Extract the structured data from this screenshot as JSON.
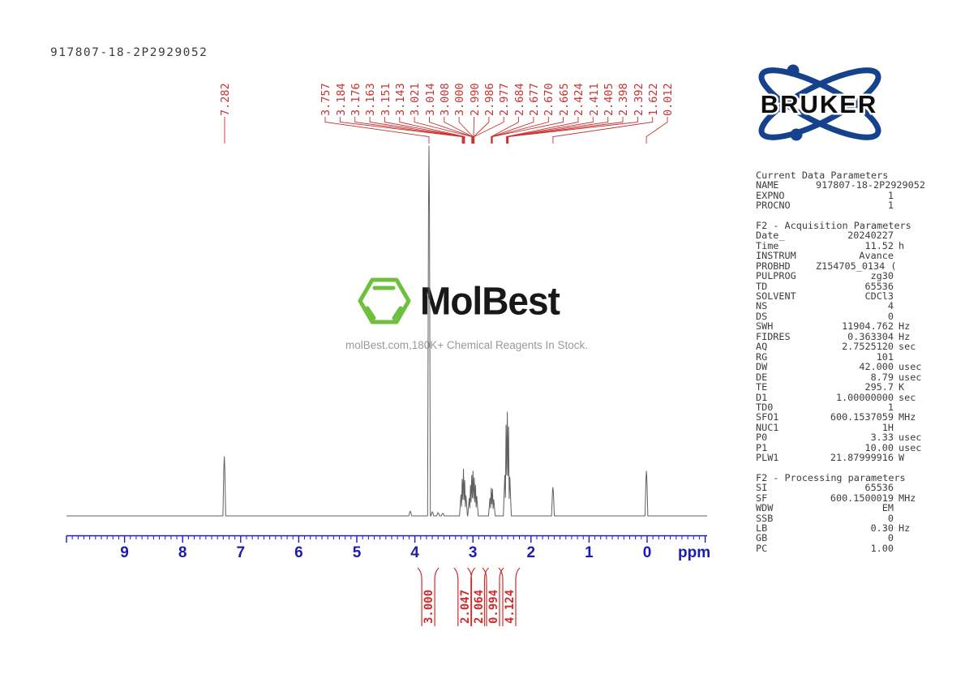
{
  "sample_id": "917807-18-2P2929052",
  "bruker": {
    "label": "BRUKER"
  },
  "watermark": {
    "name": "MolBest",
    "tagline": "molBest.com,180K+ Chemical Reagents In Stock.",
    "hex_icon": "benzene-hexagon-icon"
  },
  "colors": {
    "peak_label_red": "#c83232",
    "integral_red": "#cf2b2b",
    "axis_blue": "#1c1cb2",
    "spectrum_gray": "#5f5f5f",
    "bruker_blue": "#16418c",
    "molbest_green": "#6fbf3e"
  },
  "peak_labels": [
    "7.282",
    "3.757",
    "3.184",
    "3.176",
    "3.163",
    "3.151",
    "3.143",
    "3.021",
    "3.014",
    "3.008",
    "3.000",
    "2.990",
    "2.986",
    "2.977",
    "2.684",
    "2.677",
    "2.670",
    "2.665",
    "2.424",
    "2.411",
    "2.405",
    "2.398",
    "2.392",
    "1.622",
    "0.012"
  ],
  "integrals": [
    {
      "value": "3.000",
      "ppm": 3.77
    },
    {
      "value": "2.047",
      "ppm": 3.145
    },
    {
      "value": "2.064",
      "ppm": 2.912
    },
    {
      "value": "0.994",
      "ppm": 2.653
    },
    {
      "value": "4.124",
      "ppm": 2.374
    }
  ],
  "axis": {
    "unit_label": "ppm",
    "ticks": [
      9,
      8,
      7,
      6,
      5,
      4,
      3,
      2,
      1,
      0
    ],
    "range": [
      10.0,
      -1.03
    ],
    "minor_step": 0.1
  },
  "chart_data": {
    "type": "line",
    "title": "917807-18-2P2929052",
    "xlabel": "ppm",
    "x_range": [
      10.0,
      -1.03
    ],
    "x_ticks": [
      9,
      8,
      7,
      6,
      5,
      4,
      3,
      2,
      1,
      0
    ],
    "peak_labels_ppm": [
      7.282,
      3.757,
      3.184,
      3.176,
      3.163,
      3.151,
      3.143,
      3.021,
      3.014,
      3.008,
      3.0,
      2.99,
      2.986,
      2.977,
      2.684,
      2.677,
      2.67,
      2.665,
      2.424,
      2.411,
      2.405,
      2.398,
      2.392,
      1.622,
      0.012
    ],
    "integral_regions": [
      {
        "center_ppm": 3.77,
        "integral": 3.0
      },
      {
        "center_ppm": 3.145,
        "integral": 2.047
      },
      {
        "center_ppm": 2.912,
        "integral": 2.064
      },
      {
        "center_ppm": 2.653,
        "integral": 0.994
      },
      {
        "center_ppm": 2.374,
        "integral": 4.124
      }
    ],
    "profile": [
      {
        "ppm": 7.282,
        "span_ppm": 0,
        "rel": [
          0.16
        ]
      },
      {
        "ppm": 4.08,
        "span_ppm": 0,
        "rel": [
          0.013
        ]
      },
      {
        "ppm": 3.757,
        "span_ppm": 0,
        "rel": [
          1.0
        ]
      },
      {
        "ppm": 3.7,
        "span_ppm": 0,
        "rel": [
          0.011
        ]
      },
      {
        "ppm": 3.6,
        "span_ppm": 0,
        "rel": [
          0.009
        ]
      },
      {
        "ppm": 3.52,
        "span_ppm": 0,
        "rel": [
          0.007
        ]
      },
      {
        "ppm": 3.163,
        "span_ppm": 0.041,
        "rel": [
          0.057,
          0.099,
          0.127,
          0.096,
          0.055
        ]
      },
      {
        "ppm": 2.999,
        "span_ppm": 0.044,
        "rel": [
          0.048,
          0.083,
          0.11,
          0.121,
          0.103,
          0.083,
          0.053
        ]
      },
      {
        "ppm": 2.674,
        "span_ppm": 0.019,
        "rel": [
          0.048,
          0.075,
          0.072,
          0.044
        ]
      },
      {
        "ppm": 2.408,
        "span_ppm": 0.032,
        "rel": [
          0.11,
          0.246,
          0.281,
          0.241,
          0.105
        ]
      },
      {
        "ppm": 1.622,
        "span_ppm": 0,
        "rel": [
          0.077
        ]
      },
      {
        "ppm": 0.012,
        "span_ppm": 0,
        "rel": [
          0.121
        ]
      }
    ]
  },
  "parameters": {
    "sections": [
      {
        "header": "Current Data Parameters",
        "rows": [
          [
            "NAME",
            "917807-18-2P2929052",
            ""
          ],
          [
            "EXPNO",
            "1",
            ""
          ],
          [
            "PROCNO",
            "1",
            ""
          ]
        ]
      },
      {
        "header": "F2 - Acquisition Parameters",
        "rows": [
          [
            "Date_",
            "20240227",
            ""
          ],
          [
            "Time",
            "11.52",
            "h"
          ],
          [
            "INSTRUM",
            "Avance",
            ""
          ],
          [
            "PROBHD",
            "Z154705_0134 (",
            ""
          ],
          [
            "PULPROG",
            "zg30",
            ""
          ],
          [
            "TD",
            "65536",
            ""
          ],
          [
            "SOLVENT",
            "CDCl3",
            ""
          ],
          [
            "NS",
            "4",
            ""
          ],
          [
            "DS",
            "0",
            ""
          ],
          [
            "SWH",
            "11904.762",
            "Hz"
          ],
          [
            "FIDRES",
            "0.363304",
            "Hz"
          ],
          [
            "AQ",
            "2.7525120",
            "sec"
          ],
          [
            "RG",
            "101",
            ""
          ],
          [
            "DW",
            "42.000",
            "usec"
          ],
          [
            "DE",
            "8.79",
            "usec"
          ],
          [
            "TE",
            "295.7",
            "K"
          ],
          [
            "D1",
            "1.00000000",
            "sec"
          ],
          [
            "TD0",
            "1",
            ""
          ],
          [
            "SFO1",
            "600.1537059",
            "MHz"
          ],
          [
            "NUC1",
            "1H",
            ""
          ],
          [
            "P0",
            "3.33",
            "usec"
          ],
          [
            "P1",
            "10.00",
            "usec"
          ],
          [
            "PLW1",
            "21.87999916",
            "W"
          ]
        ]
      },
      {
        "header": "F2 - Processing parameters",
        "rows": [
          [
            "SI",
            "65536",
            ""
          ],
          [
            "SF",
            "600.1500019",
            "MHz"
          ],
          [
            "WDW",
            "EM",
            ""
          ],
          [
            "SSB",
            "0",
            ""
          ],
          [
            "LB",
            "0.30",
            "Hz"
          ],
          [
            "GB",
            "0",
            ""
          ],
          [
            "PC",
            "1.00",
            ""
          ]
        ]
      }
    ]
  }
}
